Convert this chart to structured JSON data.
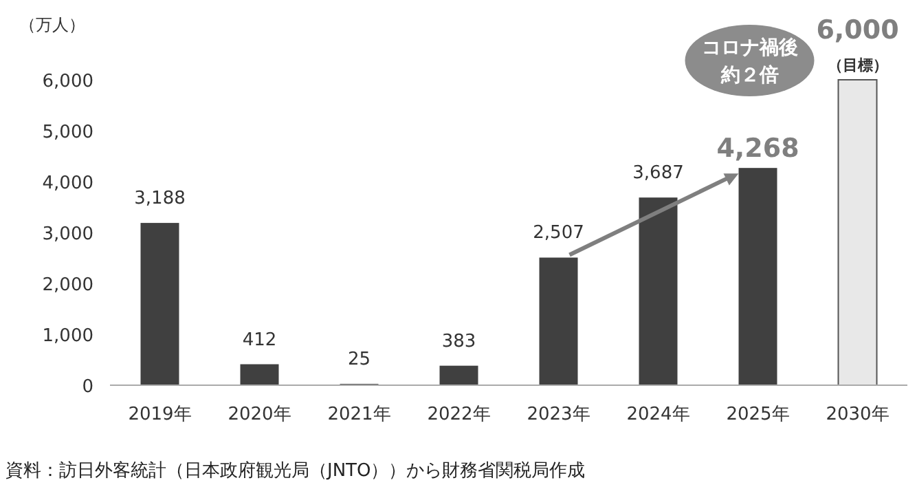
{
  "chart_data": {
    "type": "bar",
    "ylabel": "（万人）",
    "categories": [
      "2019年",
      "2020年",
      "2021年",
      "2022年",
      "2023年",
      "2024年",
      "2025年",
      "2030年"
    ],
    "values": [
      3188,
      412,
      25,
      383,
      2507,
      3687,
      4268,
      6000
    ],
    "colors": [
      "#404040",
      "#404040",
      "#404040",
      "#404040",
      "#404040",
      "#404040",
      "#404040",
      "#e8e8e8"
    ],
    "value_labels": [
      "3,188",
      "412",
      "25",
      "383",
      "2,507",
      "3,687",
      "4,268",
      "6,000"
    ],
    "ylim": [
      0,
      6000
    ],
    "yticks": [
      {
        "value": 0,
        "label": "0"
      },
      {
        "value": 1000,
        "label": "1,000"
      },
      {
        "value": 2000,
        "label": "2,000"
      },
      {
        "value": 3000,
        "label": "3,000"
      },
      {
        "value": 4000,
        "label": "4,000"
      },
      {
        "value": 5000,
        "label": "5,000"
      },
      {
        "value": 6000,
        "label": "6,000"
      }
    ],
    "grid": false,
    "annotations": [
      {
        "text": "（目標）",
        "x": "2030年",
        "y": 6000
      },
      "コロナ禍後",
      "約２倍",
      "資料：訪日外客統計（日本政府観光局（JNTO））から財務省関税局作成"
    ]
  }
}
